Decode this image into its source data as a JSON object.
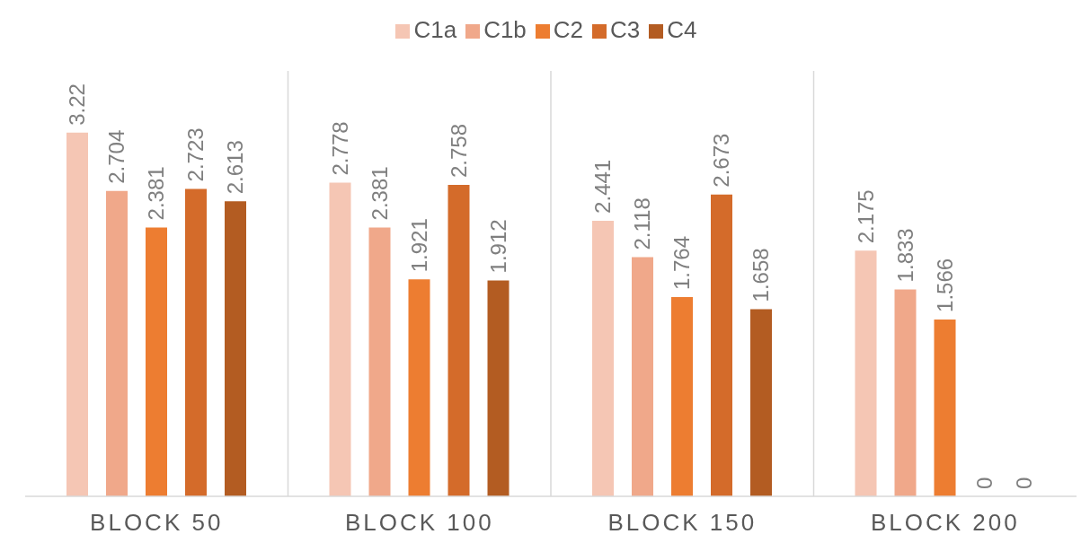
{
  "chart_data": {
    "type": "bar",
    "categories": [
      "BLOCK 50",
      "BLOCK 100",
      "BLOCK 150",
      "BLOCK 200"
    ],
    "series": [
      {
        "name": "C1a",
        "color": "#f5c6b4",
        "values": [
          3.22,
          2.778,
          2.441,
          2.175
        ]
      },
      {
        "name": "C1b",
        "color": "#f0a88a",
        "values": [
          2.704,
          2.381,
          2.118,
          1.833
        ]
      },
      {
        "name": "C2",
        "color": "#ed7d31",
        "values": [
          2.381,
          1.921,
          1.764,
          1.566
        ]
      },
      {
        "name": "C3",
        "color": "#d46b2a",
        "values": [
          2.723,
          2.758,
          2.673,
          0
        ]
      },
      {
        "name": "C4",
        "color": "#b35c22",
        "values": [
          2.613,
          1.912,
          1.658,
          0
        ]
      }
    ],
    "data_labels": true,
    "grid": "x",
    "legend": "top"
  }
}
